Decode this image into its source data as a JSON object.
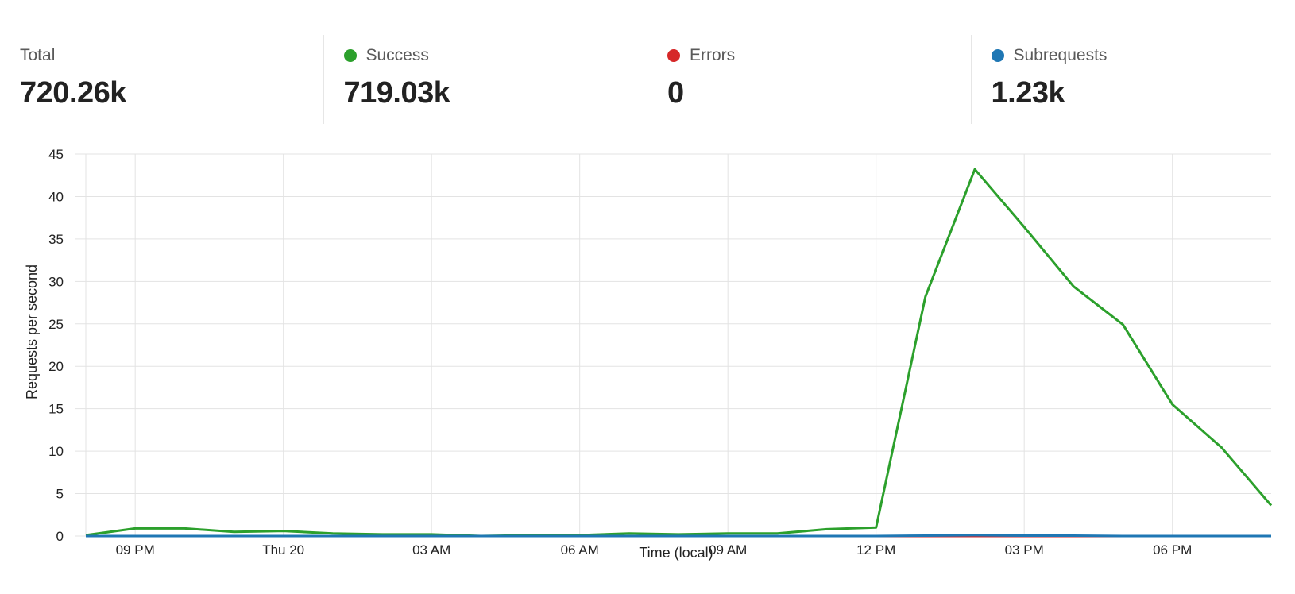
{
  "stats": {
    "total": {
      "label": "Total",
      "value": "720.26k"
    },
    "success": {
      "label": "Success",
      "value": "719.03k",
      "color": "#2ca02c"
    },
    "errors": {
      "label": "Errors",
      "value": "0",
      "color": "#d62728"
    },
    "subrequests": {
      "label": "Subrequests",
      "value": "1.23k",
      "color": "#1f77b4"
    }
  },
  "chart_data": {
    "type": "line",
    "xlabel": "Time (local)",
    "ylabel": "Requests per second",
    "ylim": [
      0,
      45
    ],
    "yticks": [
      0,
      5,
      10,
      15,
      20,
      25,
      30,
      35,
      40,
      45
    ],
    "xticks": [
      "09 PM",
      "Thu 20",
      "03 AM",
      "06 AM",
      "09 AM",
      "12 PM",
      "03 PM",
      "06 PM"
    ],
    "grid": true,
    "x": [
      "Wed 19 08:00 PM",
      "Wed 19 09:00 PM",
      "Wed 19 10:00 PM",
      "Wed 19 11:00 PM",
      "Thu 20 12:00 AM",
      "Thu 20 01:00 AM",
      "Thu 20 02:00 AM",
      "Thu 20 03:00 AM",
      "Thu 20 04:00 AM",
      "Thu 20 05:00 AM",
      "Thu 20 06:00 AM",
      "Thu 20 07:00 AM",
      "Thu 20 08:00 AM",
      "Thu 20 09:00 AM",
      "Thu 20 10:00 AM",
      "Thu 20 11:00 AM",
      "Thu 20 12:00 PM",
      "Thu 20 01:00 PM",
      "Thu 20 02:00 PM",
      "Thu 20 03:00 PM",
      "Thu 20 04:00 PM",
      "Thu 20 05:00 PM",
      "Thu 20 06:00 PM",
      "Thu 20 07:00 PM",
      "Thu 20 08:00 PM"
    ],
    "series": [
      {
        "name": "Success",
        "color": "#2ca02c",
        "values": [
          0.1,
          0.9,
          0.9,
          0.5,
          0.6,
          0.3,
          0.2,
          0.2,
          0.0,
          0.1,
          0.1,
          0.3,
          0.2,
          0.3,
          0.3,
          0.8,
          1.0,
          28.2,
          43.2,
          36.4,
          29.4,
          24.9,
          15.5,
          10.4,
          3.6
        ]
      },
      {
        "name": "Errors",
        "color": "#d62728",
        "values": [
          0,
          0,
          0,
          0,
          0,
          0,
          0,
          0,
          0,
          0,
          0,
          0,
          0,
          0,
          0,
          0,
          0,
          0,
          0,
          0,
          0,
          0,
          0,
          0,
          0
        ]
      },
      {
        "name": "Subrequests",
        "color": "#1f77b4",
        "values": [
          0.0,
          0.0,
          0.0,
          0.0,
          0.0,
          0.0,
          0.0,
          0.0,
          0.0,
          0.0,
          0.0,
          0.0,
          0.0,
          0.0,
          0.0,
          0.0,
          0.0,
          0.05,
          0.1,
          0.05,
          0.05,
          0.0,
          0.0,
          0.0,
          0.0
        ]
      }
    ]
  }
}
